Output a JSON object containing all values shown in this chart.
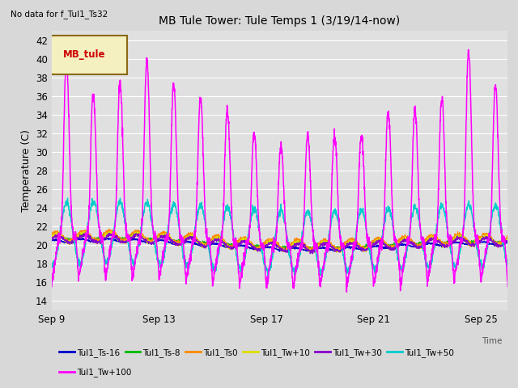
{
  "title": "MB Tule Tower: Tule Temps 1 (3/19/14-now)",
  "subtitle": "No data for f_Tul1_Ts32",
  "ylabel": "Temperature (C)",
  "xlabel": "Time",
  "ylim": [
    13,
    43
  ],
  "yticks": [
    14,
    16,
    18,
    20,
    22,
    24,
    26,
    28,
    30,
    32,
    34,
    36,
    38,
    40,
    42
  ],
  "xtick_labels": [
    "Sep 9",
    "Sep 13",
    "Sep 17",
    "Sep 21",
    "Sep 25"
  ],
  "bg_color": "#d8d8d8",
  "plot_bg": "#e0e0e0",
  "grid_color": "#ffffff",
  "legend_box_color": "#f5f0c0",
  "legend_box_edge": "#8b6914",
  "legend_text_color": "#cc0000",
  "legend_label": "MB_tule",
  "series_colors": {
    "Tul1_Ts-16": "#0000cc",
    "Tul1_Ts-8": "#00bb00",
    "Tul1_Ts0": "#ff8800",
    "Tul1_Tw+10": "#dddd00",
    "Tul1_Tw+30": "#8800cc",
    "Tul1_Tw+50": "#00cccc",
    "Tul1_Tw+100": "#ff00ff"
  },
  "n_days": 17,
  "pts_per_day": 144
}
